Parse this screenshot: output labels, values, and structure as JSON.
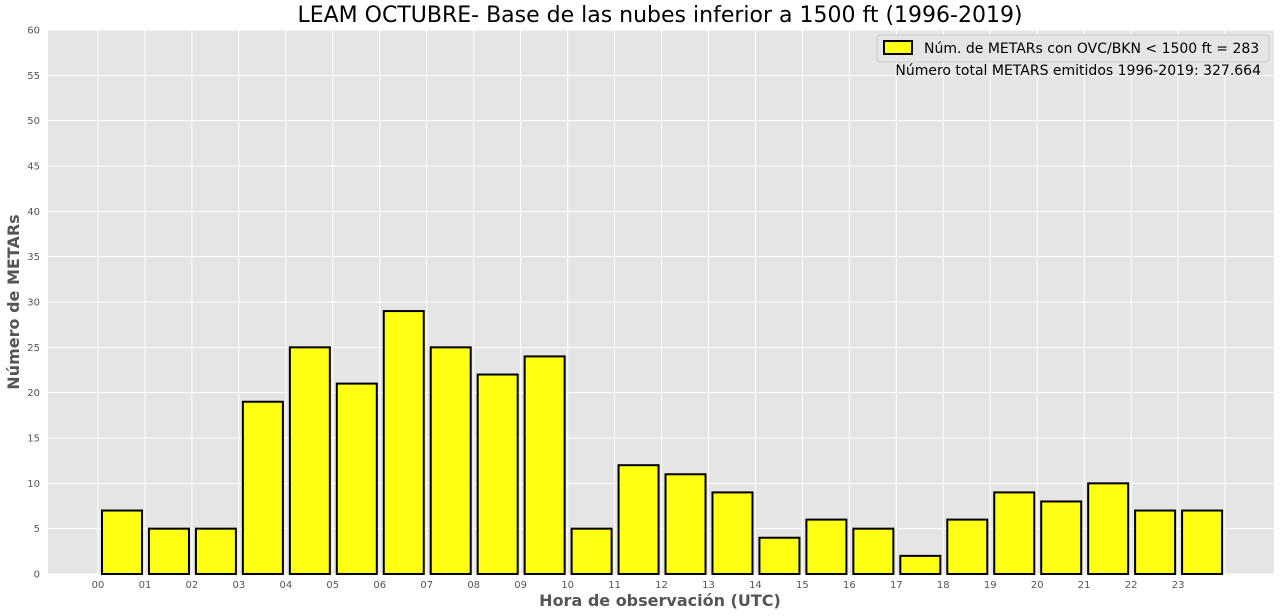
{
  "chart_data": {
    "type": "bar",
    "title": "LEAM OCTUBRE- Base de las nubes inferior a 1500 ft (1996-2019)",
    "xlabel": "Hora de observación (UTC)",
    "ylabel": "Número de METARs",
    "categories": [
      "00",
      "01",
      "02",
      "03",
      "04",
      "05",
      "06",
      "07",
      "08",
      "09",
      "10",
      "11",
      "12",
      "13",
      "14",
      "15",
      "16",
      "17",
      "18",
      "19",
      "20",
      "21",
      "22",
      "23"
    ],
    "values": [
      7,
      5,
      5,
      19,
      25,
      21,
      29,
      25,
      22,
      24,
      5,
      12,
      11,
      9,
      4,
      6,
      5,
      2,
      6,
      9,
      8,
      10,
      7,
      7
    ],
    "ylim": [
      0,
      60
    ],
    "yticks": [
      "0",
      "5",
      "10",
      "15",
      "20",
      "25",
      "30",
      "35",
      "40",
      "45",
      "50",
      "55",
      "60"
    ],
    "grid": true,
    "legend": {
      "placement": "top-right",
      "series_label": "Núm. de METARs con OVC/BKN < 1500 ft = 283",
      "note": "Número total METARS emitidos 1996-2019: 327.664"
    },
    "colors": {
      "bar_fill": "#ffff14",
      "bar_edge": "#000000",
      "plot_background": "#e5e5e5",
      "grid": "#ffffff"
    }
  }
}
